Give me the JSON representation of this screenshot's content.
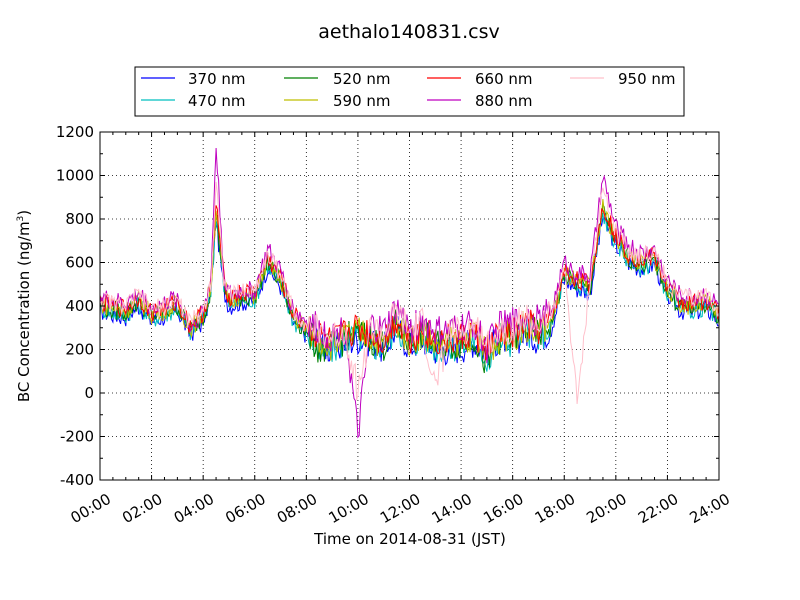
{
  "chart_data": {
    "type": "line",
    "title": "aethalo140831.csv",
    "xlabel": "Time on 2014-08-31 (JST)",
    "ylabel": "BC Concentration (ng/m",
    "ylabel_superscript": "3",
    "ylabel_suffix": ")",
    "xlim": [
      "00:00",
      "24:00"
    ],
    "ylim": [
      -400,
      1200
    ],
    "x_ticks": [
      "00:00",
      "02:00",
      "04:00",
      "06:00",
      "08:00",
      "10:00",
      "12:00",
      "14:00",
      "16:00",
      "18:00",
      "20:00",
      "22:00",
      "24:00"
    ],
    "y_ticks": [
      1200,
      1000,
      800,
      600,
      400,
      200,
      0,
      -200,
      -400
    ],
    "grid": true,
    "legend_position": "top",
    "hours": [
      0,
      0.5,
      1,
      1.5,
      2,
      2.5,
      3,
      3.5,
      4,
      4.3,
      4.5,
      4.8,
      5,
      5.5,
      6,
      6.5,
      7,
      7.5,
      8,
      8.5,
      9,
      9.5,
      10,
      10.5,
      11,
      11.5,
      12,
      12.5,
      13,
      13.5,
      14,
      14.5,
      15,
      15.5,
      16,
      16.5,
      17,
      17.5,
      18,
      18.5,
      19,
      19.5,
      20,
      20.5,
      21,
      21.5,
      22,
      22.5,
      23,
      23.5,
      24
    ],
    "series": [
      {
        "name": "370 nm",
        "color": "#0000ff",
        "values": [
          380,
          360,
          350,
          400,
          330,
          350,
          380,
          270,
          330,
          450,
          800,
          470,
          400,
          420,
          420,
          580,
          490,
          320,
          270,
          240,
          190,
          230,
          250,
          240,
          200,
          300,
          210,
          250,
          200,
          200,
          210,
          240,
          190,
          260,
          230,
          280,
          250,
          300,
          520,
          480,
          460,
          810,
          680,
          600,
          570,
          590,
          450,
          380,
          370,
          390,
          330
        ]
      },
      {
        "name": "470 nm",
        "color": "#00bfbf",
        "values": [
          390,
          370,
          360,
          410,
          340,
          360,
          390,
          280,
          340,
          470,
          820,
          480,
          410,
          430,
          430,
          590,
          500,
          330,
          280,
          180,
          200,
          240,
          260,
          220,
          210,
          310,
          220,
          260,
          210,
          210,
          220,
          250,
          150,
          240,
          240,
          290,
          260,
          310,
          530,
          490,
          470,
          820,
          690,
          610,
          580,
          600,
          460,
          390,
          380,
          400,
          340
        ]
      },
      {
        "name": "520 nm",
        "color": "#008000",
        "values": [
          400,
          380,
          370,
          420,
          350,
          370,
          400,
          290,
          350,
          480,
          840,
          490,
          420,
          440,
          440,
          600,
          510,
          340,
          290,
          200,
          210,
          250,
          270,
          250,
          220,
          320,
          230,
          270,
          220,
          220,
          230,
          260,
          120,
          250,
          250,
          300,
          270,
          320,
          540,
          500,
          480,
          840,
          700,
          620,
          590,
          610,
          470,
          400,
          390,
          410,
          350
        ]
      },
      {
        "name": "590 nm",
        "color": "#bfbf00",
        "values": [
          410,
          390,
          380,
          430,
          360,
          380,
          410,
          300,
          360,
          490,
          860,
          500,
          430,
          450,
          450,
          610,
          520,
          350,
          300,
          250,
          220,
          260,
          280,
          260,
          230,
          330,
          240,
          280,
          230,
          230,
          240,
          270,
          180,
          260,
          260,
          310,
          280,
          330,
          550,
          510,
          490,
          850,
          710,
          630,
          600,
          620,
          480,
          410,
          400,
          420,
          360
        ]
      },
      {
        "name": "660 nm",
        "color": "#ff0000",
        "values": [
          420,
          400,
          390,
          440,
          370,
          390,
          420,
          310,
          370,
          500,
          880,
          520,
          440,
          460,
          460,
          620,
          530,
          360,
          310,
          260,
          230,
          270,
          300,
          270,
          240,
          340,
          250,
          290,
          240,
          240,
          250,
          280,
          200,
          270,
          270,
          320,
          290,
          340,
          560,
          520,
          500,
          870,
          720,
          640,
          610,
          630,
          490,
          420,
          410,
          430,
          370
        ]
      },
      {
        "name": "880 nm",
        "color": "#bf00bf",
        "values": [
          440,
          420,
          410,
          460,
          390,
          410,
          440,
          300,
          380,
          520,
          1140,
          540,
          450,
          470,
          470,
          660,
          560,
          380,
          330,
          290,
          260,
          300,
          -200,
          310,
          280,
          390,
          290,
          330,
          280,
          280,
          300,
          320,
          210,
          310,
          320,
          360,
          330,
          380,
          600,
          550,
          540,
          990,
          760,
          680,
          640,
          660,
          520,
          450,
          440,
          460,
          400
        ]
      },
      {
        "name": "950 nm",
        "color": "#ffc0cb",
        "values": [
          430,
          410,
          400,
          450,
          380,
          400,
          430,
          320,
          380,
          510,
          980,
          530,
          450,
          470,
          470,
          640,
          550,
          370,
          320,
          280,
          250,
          290,
          10,
          300,
          270,
          370,
          280,
          320,
          20,
          270,
          280,
          310,
          230,
          290,
          300,
          340,
          310,
          360,
          580,
          -40,
          520,
          940,
          740,
          660,
          630,
          650,
          510,
          440,
          430,
          450,
          390
        ]
      }
    ]
  }
}
